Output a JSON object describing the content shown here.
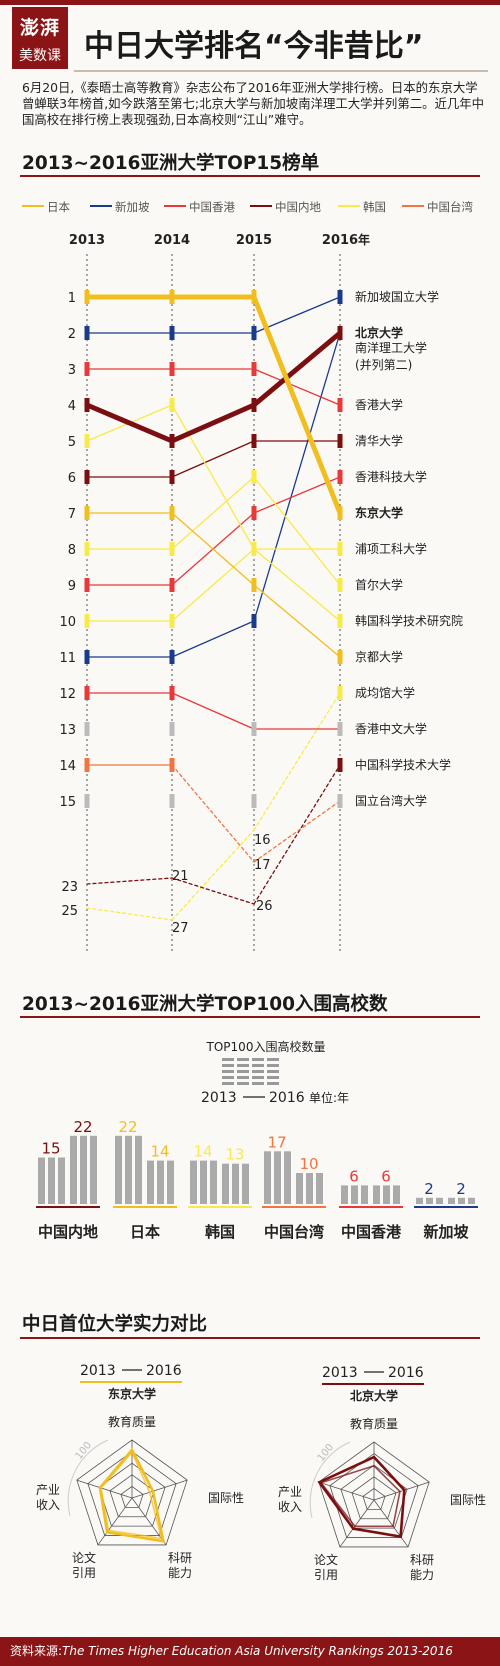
{
  "header": {
    "logo_line1": "澎湃",
    "logo_line2": "美数课",
    "title": "中日大学排名“今非昔比”",
    "intro": "6月20日,《泰晤士高等教育》杂志公布了2016年亚洲大学排行榜。日本的东京大学曾蝉联3年榜首,如今跌落至第七;北京大学与新加坡南洋理工大学并列第二。近几年中国高校在排行榜上表现强劲,日本高校则“江山”难守。"
  },
  "section1": {
    "title": "2013~2016亚洲大学TOP15榜单"
  },
  "section2": {
    "title": "2013~2016亚洲大学TOP100入围高校数",
    "key_title": "TOP100入围高校数量",
    "key_from": "2013",
    "key_to": "2016",
    "key_unit": "单位:年"
  },
  "section3": {
    "title": "中日首位大学实力对比",
    "left_label": "东京大学",
    "right_label": "北京大学",
    "from": "2013",
    "to": "2016",
    "scale_label": "100"
  },
  "source": {
    "label": "资料来源:",
    "text": "The Times Higher Education Asia University Rankings 2013-2016"
  },
  "chart_data": [
    {
      "type": "line",
      "title": "2013~2016亚洲大学TOP15榜单",
      "x": [
        "2013",
        "2014",
        "2015",
        "2016"
      ],
      "x_unit": "年",
      "y_ticks": [
        1,
        2,
        3,
        4,
        5,
        6,
        7,
        8,
        9,
        10,
        11,
        12,
        13,
        14,
        15
      ],
      "outside_ranks_shown": [
        16,
        17,
        21,
        23,
        25,
        26,
        27
      ],
      "invert_y": true,
      "legend": [
        {
          "name": "日本",
          "color": "#f1be20"
        },
        {
          "name": "新加坡",
          "color": "#1b3a8c"
        },
        {
          "name": "中国香港",
          "color": "#e8383a"
        },
        {
          "name": "中国内地",
          "color": "#7a0e10"
        },
        {
          "name": "韩国",
          "color": "#f8ea4a"
        },
        {
          "name": "中国台湾",
          "color": "#f07541"
        }
      ],
      "legend_placement": "top",
      "series": [
        {
          "label": "新加坡国立大学",
          "group": "新加坡",
          "values": [
            2,
            2,
            2,
            1
          ],
          "bold": false
        },
        {
          "label": "北京大学",
          "group": "中国内地",
          "values": [
            4,
            5,
            4,
            2
          ],
          "bold": true,
          "highlight": true
        },
        {
          "label": "南洋理工大学",
          "group": "新加坡",
          "values": [
            11,
            11,
            10,
            2
          ],
          "bold": false,
          "label_note": "(并列第二)"
        },
        {
          "label": "香港大学",
          "group": "中国香港",
          "values": [
            3,
            3,
            3,
            4
          ],
          "bold": false
        },
        {
          "label": "清华大学",
          "group": "中国内地",
          "values": [
            6,
            6,
            5,
            5
          ],
          "bold": false
        },
        {
          "label": "香港科技大学",
          "group": "中国香港",
          "values": [
            9,
            9,
            7,
            6
          ],
          "bold": false
        },
        {
          "label": "东京大学",
          "group": "日本",
          "values": [
            1,
            1,
            1,
            7
          ],
          "bold": true,
          "highlight": true
        },
        {
          "label": "浦项工科大学",
          "group": "韩国",
          "values": [
            5,
            4,
            8,
            8
          ],
          "bold": false
        },
        {
          "label": "首尔大学",
          "group": "韩国",
          "values": [
            8,
            8,
            6,
            9
          ],
          "bold": false
        },
        {
          "label": "韩国科学技术研究院",
          "group": "韩国",
          "values": [
            10,
            10,
            8,
            10
          ],
          "bold": false
        },
        {
          "label": "京都大学",
          "group": "日本",
          "values": [
            7,
            7,
            9,
            11
          ],
          "bold": false
        },
        {
          "label": "成均馆大学",
          "group": "韩国",
          "values": [
            25,
            27,
            16,
            12
          ],
          "bold": false
        },
        {
          "label": "香港中文大学",
          "group": "中国香港",
          "values": [
            12,
            12,
            13,
            13
          ],
          "bold": false
        },
        {
          "label": "中国科学技术大学",
          "group": "中国内地",
          "values": [
            23,
            21,
            26,
            14
          ],
          "bold": false
        },
        {
          "label": "国立台湾大学",
          "group": "中国台湾",
          "values": [
            14,
            14,
            17,
            15
          ],
          "bold": false
        }
      ],
      "unlabeled_marks": [
        {
          "group": "日本",
          "ranks": [
            13,
            15
          ]
        }
      ]
    },
    {
      "type": "bar",
      "title": "2013~2016亚洲大学TOP100入围高校数",
      "categories": [
        "中国内地",
        "日本",
        "韩国",
        "中国台湾",
        "中国香港",
        "新加坡"
      ],
      "series": [
        {
          "name": "2013",
          "values": [
            15,
            22,
            14,
            17,
            6,
            2
          ]
        },
        {
          "name": "2016",
          "values": [
            22,
            14,
            13,
            10,
            6,
            2
          ]
        }
      ],
      "label_colors": [
        "#7a0e10",
        "#f1be20",
        "#f8ea4a",
        "#f07541",
        "#e8383a",
        "#1b3a8c"
      ]
    },
    {
      "type": "radar",
      "title": "中日首位大学实力对比",
      "axes": [
        "教育质量",
        "国际性",
        "科研能力",
        "论文引用",
        "产业收入"
      ],
      "range": [
        0,
        100
      ],
      "charts": [
        {
          "name": "东京大学",
          "color": "#f1be20",
          "series": [
            {
              "name": "2013",
              "values": [
                79,
                32,
                86,
                69,
                56
              ]
            },
            {
              "name": "2016",
              "values": [
                83,
                38,
                92,
                73,
                58
              ]
            }
          ]
        },
        {
          "name": "北京大学",
          "color": "#7a0e10",
          "series": [
            {
              "name": "2013",
              "values": [
                59,
                47,
                56,
                56,
                96
              ]
            },
            {
              "name": "2016",
              "values": [
                74,
                55,
                78,
                61,
                99
              ]
            }
          ]
        }
      ]
    }
  ]
}
